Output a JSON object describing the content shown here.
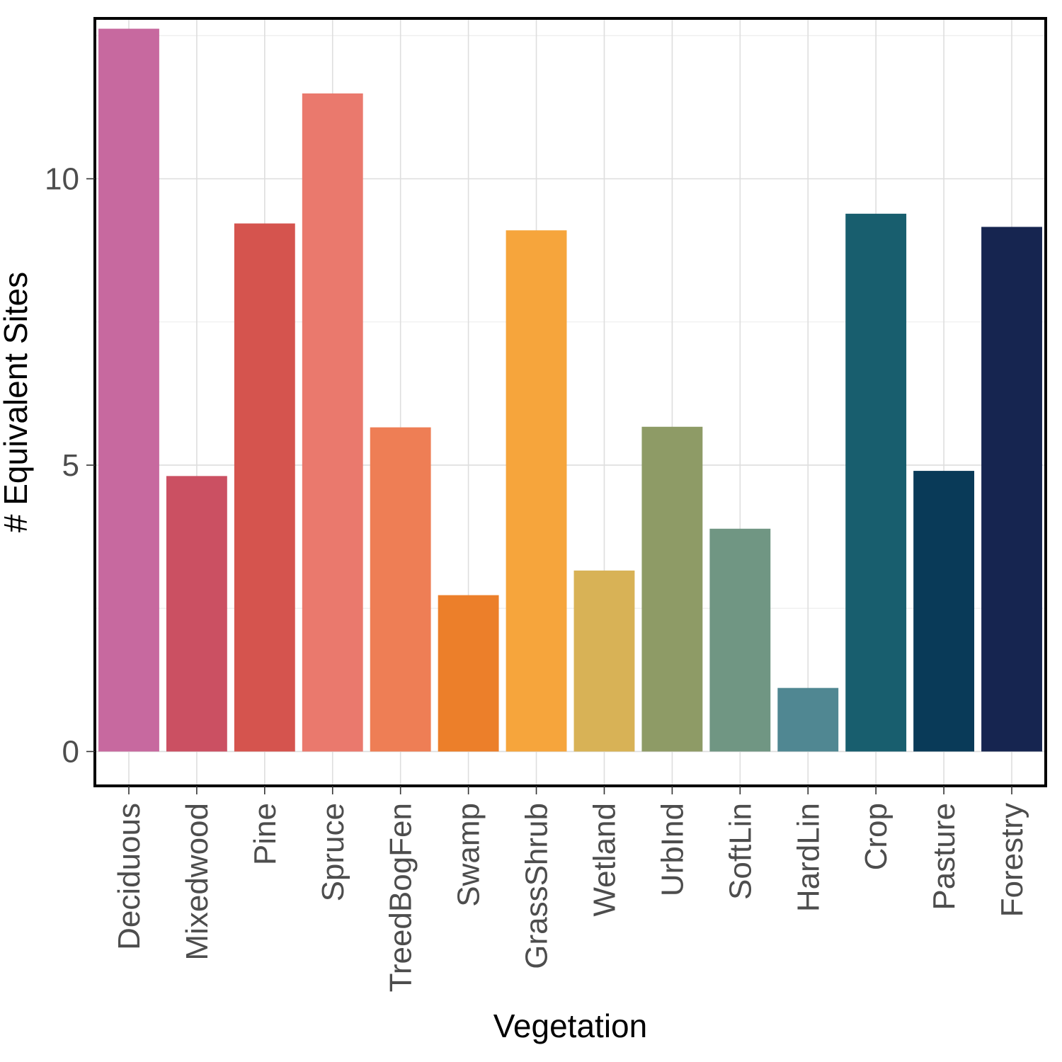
{
  "chart_data": {
    "type": "bar",
    "xlabel": "Vegetation",
    "ylabel": "# Equivalent Sites",
    "ylim": [
      -0.6,
      12.8
    ],
    "yticks": [
      0,
      5,
      10
    ],
    "grid": true,
    "legend": "none",
    "categories": [
      "Deciduous",
      "Mixedwood",
      "Pine",
      "Spruce",
      "TreedBogFen",
      "Swamp",
      "GrassShrub",
      "Wetland",
      "UrbInd",
      "SoftLin",
      "HardLin",
      "Crop",
      "Pasture",
      "Forestry"
    ],
    "values": [
      12.62,
      4.81,
      9.22,
      11.49,
      5.66,
      2.73,
      9.1,
      3.16,
      5.67,
      3.89,
      1.11,
      9.39,
      4.9,
      9.16
    ],
    "colors": [
      "#c7699f",
      "#cb5062",
      "#d5544e",
      "#ea796d",
      "#ee7e55",
      "#ec7f2a",
      "#f6a53c",
      "#d8b256",
      "#8e9b66",
      "#709683",
      "#508792",
      "#185e6e",
      "#093a58",
      "#162550"
    ]
  }
}
